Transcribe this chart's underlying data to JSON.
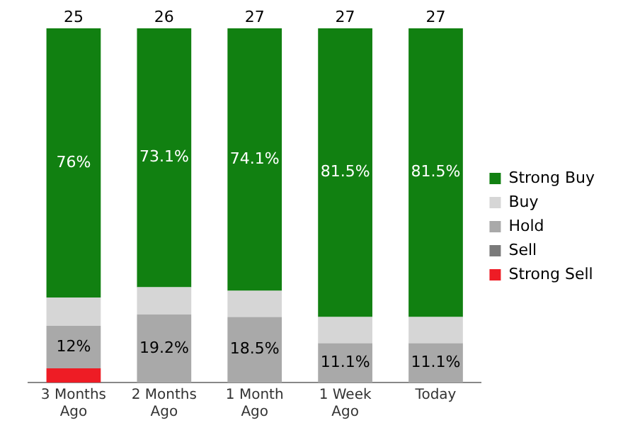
{
  "chart_data": {
    "type": "bar",
    "stacked": true,
    "categories": [
      "3 Months Ago",
      "2 Months Ago",
      "1 Month Ago",
      "1 Week Ago",
      "Today"
    ],
    "series": [
      {
        "name": "Strong Sell",
        "color": "#ee1c25",
        "values": [
          4,
          0,
          0,
          0,
          0
        ],
        "value_labels": [
          null,
          null,
          null,
          null,
          null
        ]
      },
      {
        "name": "Sell",
        "color": "#7a7a7a",
        "values": [
          0,
          0,
          0,
          0,
          0
        ],
        "value_labels": [
          null,
          null,
          null,
          null,
          null
        ]
      },
      {
        "name": "Hold",
        "color": "#a9a9a9",
        "values": [
          12,
          19.2,
          18.5,
          11.1,
          11.1
        ],
        "value_labels": [
          "12%",
          "19.2%",
          "18.5%",
          "11.1%",
          "11.1%"
        ]
      },
      {
        "name": "Buy",
        "color": "#d6d6d6",
        "values": [
          8,
          7.7,
          7.4,
          7.4,
          7.4
        ],
        "value_labels": [
          null,
          null,
          null,
          null,
          null
        ]
      },
      {
        "name": "Strong Buy",
        "color": "#118011",
        "values": [
          76,
          73.1,
          74.1,
          81.5,
          81.5
        ],
        "value_labels": [
          "76%",
          "73.1%",
          "74.1%",
          "81.5%",
          "81.5%"
        ]
      }
    ],
    "annotations": [
      {
        "text": "25",
        "x": "3 Months Ago",
        "y": 100
      },
      {
        "text": "26",
        "x": "2 Months Ago",
        "y": 100
      },
      {
        "text": "27",
        "x": "1 Month Ago",
        "y": 100
      },
      {
        "text": "27",
        "x": "1 Week Ago",
        "y": 100
      },
      {
        "text": "27",
        "x": "Today",
        "y": 100
      }
    ],
    "tick_labels": "x",
    "grid": false,
    "legend": "right"
  }
}
